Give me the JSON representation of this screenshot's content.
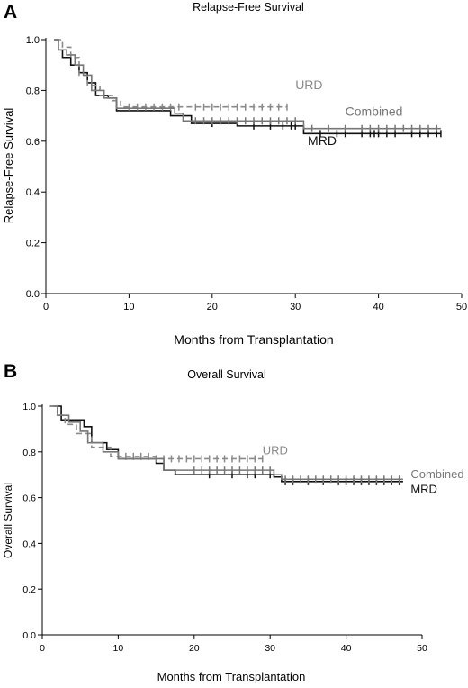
{
  "chart_data": [
    {
      "type": "line",
      "panel_label": "A",
      "title": "Relapse-Free Survival",
      "xlabel": "Months from Transplantation",
      "ylabel": "Relapse-Free Survival",
      "xlim": [
        0,
        50
      ],
      "ylim": [
        0,
        1.0
      ],
      "x_ticks": [
        0,
        10,
        20,
        30,
        40,
        50
      ],
      "y_ticks": [
        0.0,
        0.2,
        0.4,
        0.6,
        0.8,
        1.0
      ],
      "x_tick_labels": [
        "0",
        "10",
        "20",
        "30",
        "40",
        "50"
      ],
      "y_tick_labels": [
        "0.0",
        "0.2",
        "0.4",
        "0.6",
        "0.8",
        "1.0"
      ],
      "grid": false,
      "series": [
        {
          "name": "MRD",
          "color": "#111111",
          "dash": "solid",
          "label_at": [
            31.5,
            0.585
          ],
          "steps": [
            [
              1,
              1.0
            ],
            [
              1.5,
              0.96
            ],
            [
              2,
              0.93
            ],
            [
              3,
              0.9
            ],
            [
              4,
              0.87
            ],
            [
              5,
              0.83
            ],
            [
              6,
              0.78
            ],
            [
              7.5,
              0.77
            ],
            [
              8.5,
              0.72
            ],
            [
              15,
              0.7
            ],
            [
              17.5,
              0.67
            ],
            [
              23,
              0.66
            ],
            [
              31,
              0.63
            ],
            [
              47.5,
              0.63
            ]
          ],
          "censors": [
            20,
            25,
            27,
            28.5,
            29.5,
            30,
            33,
            35,
            36,
            38,
            39,
            39.5,
            40,
            41,
            42,
            44,
            45,
            46,
            47,
            47.5
          ]
        },
        {
          "name": "URD",
          "color": "#8a8a8a",
          "dash": "6,4",
          "label_at": [
            30,
            0.805
          ],
          "steps": [
            [
              1.2,
              1.0
            ],
            [
              2,
              0.97
            ],
            [
              3,
              0.93
            ],
            [
              4,
              0.86
            ],
            [
              5,
              0.82
            ],
            [
              6.5,
              0.78
            ],
            [
              8,
              0.76
            ],
            [
              9,
              0.735
            ],
            [
              29,
              0.735
            ]
          ],
          "censors": [
            10,
            11,
            12,
            13,
            14,
            15,
            16,
            18,
            19,
            20,
            21,
            22,
            23,
            24,
            25,
            26,
            27,
            28,
            29
          ]
        },
        {
          "name": "Combined",
          "color": "#777777",
          "dash": "solid",
          "label_at": [
            36,
            0.7
          ],
          "steps": [
            [
              1,
              1.0
            ],
            [
              1.5,
              0.96
            ],
            [
              2.5,
              0.94
            ],
            [
              3.5,
              0.9
            ],
            [
              4.5,
              0.86
            ],
            [
              5.5,
              0.8
            ],
            [
              7,
              0.77
            ],
            [
              8.5,
              0.73
            ],
            [
              15.5,
              0.71
            ],
            [
              16.5,
              0.68
            ],
            [
              31,
              0.65
            ],
            [
              47.5,
              0.65
            ]
          ],
          "censors": [
            18,
            19,
            20,
            21,
            22,
            23,
            24,
            25,
            26,
            27,
            28,
            29,
            30,
            32,
            34,
            36,
            38,
            39,
            40,
            41,
            42,
            43,
            44,
            45,
            46,
            47
          ]
        }
      ]
    },
    {
      "type": "line",
      "panel_label": "B",
      "title": "Overall Survival",
      "xlabel": "Months from Transplantation",
      "ylabel": "Overall Survival",
      "xlim": [
        0,
        50
      ],
      "ylim": [
        0,
        1.0
      ],
      "x_ticks": [
        0,
        10,
        20,
        30,
        40,
        50
      ],
      "y_ticks": [
        0.0,
        0.2,
        0.4,
        0.6,
        0.8,
        1.0
      ],
      "x_tick_labels": [
        "0",
        "10",
        "20",
        "30",
        "40",
        "50"
      ],
      "y_tick_labels": [
        "0.0",
        "0.2",
        "0.4",
        "0.6",
        "0.8",
        "1.0"
      ],
      "grid": false,
      "series": [
        {
          "name": "MRD",
          "color": "#111111",
          "dash": "solid",
          "label_at": [
            48.5,
            0.62
          ],
          "steps": [
            [
              1.5,
              1.0
            ],
            [
              2.5,
              0.94
            ],
            [
              5.5,
              0.91
            ],
            [
              6.5,
              0.84
            ],
            [
              8.5,
              0.81
            ],
            [
              10,
              0.77
            ],
            [
              15,
              0.75
            ],
            [
              16,
              0.72
            ],
            [
              17.5,
              0.7
            ],
            [
              30.5,
              0.69
            ],
            [
              31.5,
              0.67
            ],
            [
              47.5,
              0.67
            ]
          ],
          "censors": [
            22,
            25,
            27,
            28,
            30,
            32,
            33,
            35,
            37,
            39,
            40,
            41,
            42,
            43,
            44,
            45,
            46,
            47
          ]
        },
        {
          "name": "URD",
          "color": "#8a8a8a",
          "dash": "6,4",
          "label_at": [
            29,
            0.79
          ],
          "steps": [
            [
              1,
              1.0
            ],
            [
              2,
              0.96
            ],
            [
              3,
              0.92
            ],
            [
              4.5,
              0.88
            ],
            [
              6.5,
              0.82
            ],
            [
              9,
              0.78
            ],
            [
              15,
              0.77
            ],
            [
              29,
              0.77
            ]
          ],
          "censors": [
            11,
            12,
            13,
            14,
            15,
            16,
            17,
            18,
            19,
            20,
            21,
            22,
            23,
            24,
            25,
            26,
            27,
            28,
            29
          ]
        },
        {
          "name": "Combined",
          "color": "#777777",
          "dash": "solid",
          "label_at": [
            48.5,
            0.685
          ],
          "steps": [
            [
              1,
              1.0
            ],
            [
              2,
              0.96
            ],
            [
              3.5,
              0.93
            ],
            [
              5,
              0.89
            ],
            [
              6,
              0.84
            ],
            [
              8,
              0.8
            ],
            [
              10,
              0.77
            ],
            [
              16,
              0.72
            ],
            [
              30.5,
              0.7
            ],
            [
              31.5,
              0.68
            ],
            [
              47.5,
              0.68
            ]
          ],
          "censors": [
            20,
            21,
            22,
            23,
            24,
            25,
            26,
            27,
            28,
            29,
            30,
            32,
            33,
            34,
            35,
            36,
            37,
            38,
            39,
            40,
            41,
            42,
            43,
            44,
            45,
            46,
            47
          ]
        }
      ]
    }
  ]
}
